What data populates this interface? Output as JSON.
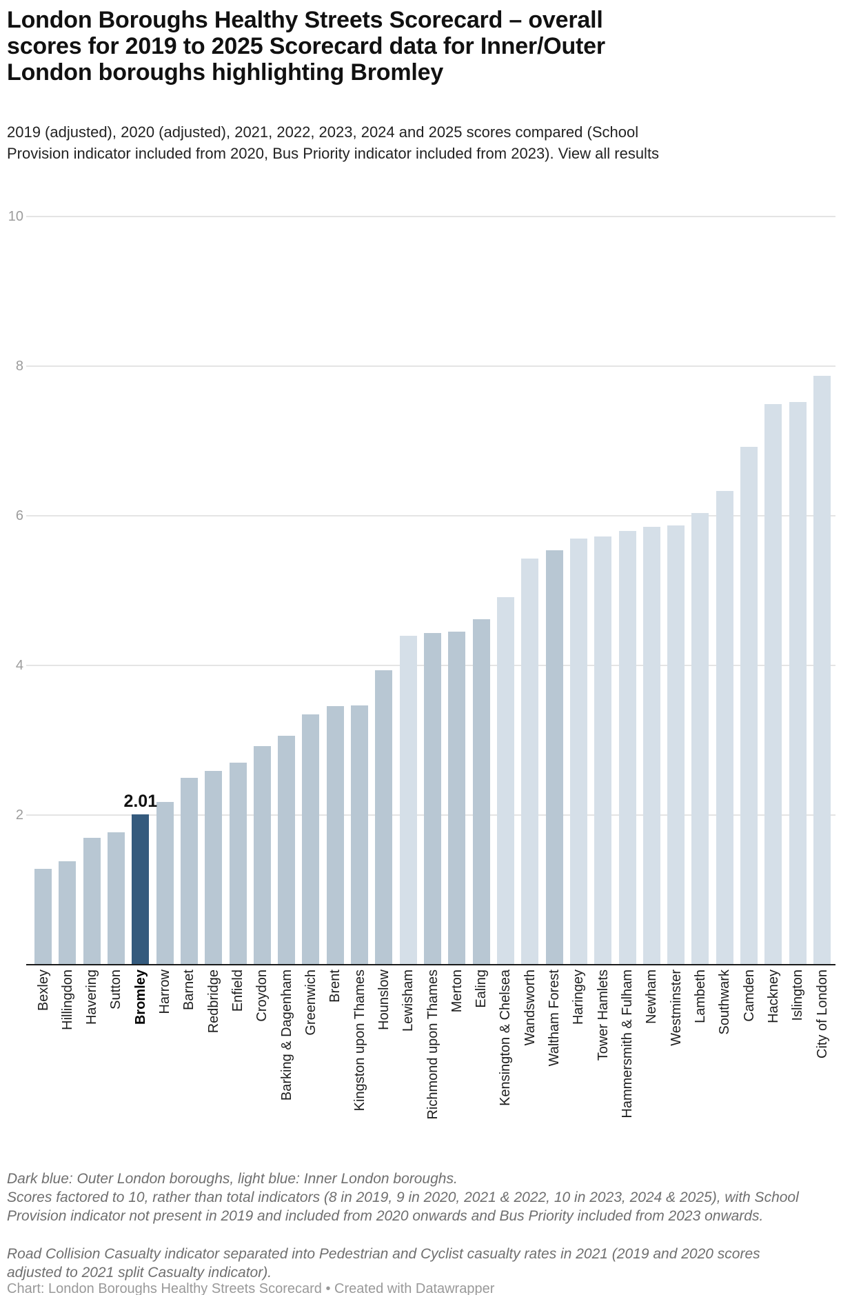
{
  "header": {
    "title": "London Boroughs Healthy Streets Scorecard – overall scores for 2019 to 2025 Scorecard data for Inner/Outer London boroughs highlighting Bromley",
    "subtitle": "2019 (adjusted), 2020 (adjusted), 2021, 2022, 2023, 2024 and 2025 scores compared (School Provision indicator included from 2020, Bus Priority indicator included from 2023). ",
    "link": "View all results"
  },
  "chart_data": {
    "type": "bar",
    "title": "London Boroughs Healthy Streets Scorecard – overall scores for 2019 to 2025",
    "xlabel": "",
    "ylabel": "",
    "ylim": [
      0,
      10
    ],
    "yticks": [
      2,
      4,
      6,
      8,
      10
    ],
    "grid": true,
    "legend_note": "Dark blue: Outer London boroughs, light blue: Inner London boroughs",
    "categories": [
      "Bexley",
      "Hillingdon",
      "Havering",
      "Sutton",
      "Bromley",
      "Harrow",
      "Barnet",
      "Redbridge",
      "Enfield",
      "Croydon",
      "Barking & Dagenham",
      "Greenwich",
      "Brent",
      "Kingston upon Thames",
      "Hounslow",
      "Lewisham",
      "Richmond upon Thames",
      "Merton",
      "Ealing",
      "Kensington & Chelsea",
      "Wandsworth",
      "Waltham Forest",
      "Haringey",
      "Tower Hamlets",
      "Hammersmith & Fulham",
      "Newham",
      "Westminster",
      "Lambeth",
      "Southwark",
      "Camden",
      "Hackney",
      "Islington",
      "City of London"
    ],
    "values": [
      1.28,
      1.38,
      1.7,
      1.77,
      2.01,
      2.18,
      2.5,
      2.59,
      2.7,
      2.92,
      3.06,
      3.35,
      3.46,
      3.47,
      3.94,
      4.4,
      4.43,
      4.45,
      4.62,
      4.91,
      5.43,
      5.54,
      5.7,
      5.72,
      5.8,
      5.85,
      5.87,
      6.04,
      6.33,
      6.92,
      7.49,
      7.52,
      7.87
    ],
    "groups": [
      "outer",
      "outer",
      "outer",
      "outer",
      "bromley",
      "outer",
      "outer",
      "outer",
      "outer",
      "outer",
      "outer",
      "outer",
      "outer",
      "outer",
      "outer",
      "inner",
      "outer",
      "outer",
      "outer",
      "inner",
      "inner",
      "outer",
      "inner",
      "inner",
      "inner",
      "inner",
      "inner",
      "inner",
      "inner",
      "inner",
      "inner",
      "inner",
      "inner"
    ],
    "colors": {
      "outer": "#b8c7d3",
      "inner": "#d5dfe8",
      "bromley": "#345a7d"
    },
    "annotation": {
      "text": "2.01",
      "category": "Bromley"
    }
  },
  "footnotes": [
    "Dark blue: Outer London boroughs, light blue: Inner London boroughs.",
    "Scores factored to 10, rather than total indicators (8 in 2019, 9 in 2020, 2021 & 2022, 10 in 2023, 2024 & 2025), with School Provision indicator not present in 2019 and included from 2020 onwards and Bus Priority included from 2023 onwards.",
    "Road Collision Casualty indicator separated into Pedestrian and Cyclist casualty rates in 2021 (2019 and 2020 scores adjusted to 2021 split Casualty indicator)."
  ],
  "credit": "Chart: London Boroughs Healthy Streets Scorecard • Created with Datawrapper"
}
